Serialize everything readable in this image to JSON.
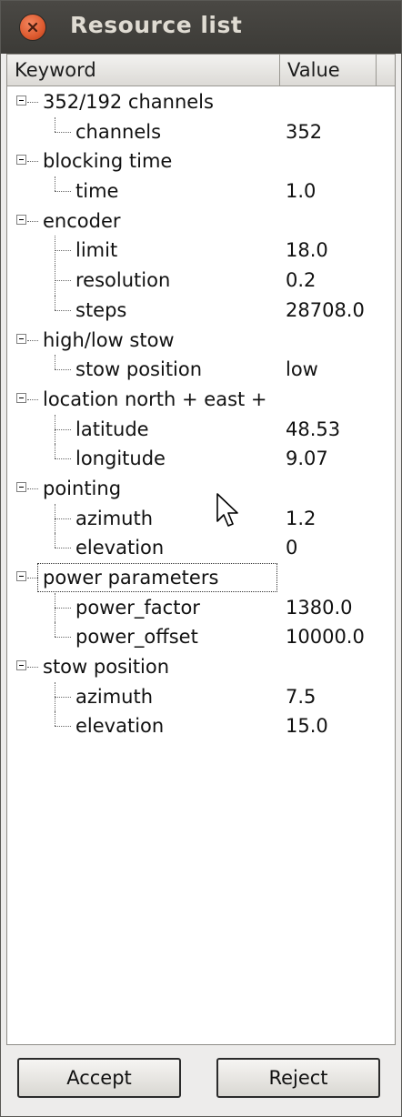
{
  "window": {
    "title": "Resource list"
  },
  "table": {
    "headers": {
      "keyword": "Keyword",
      "value": "Value"
    },
    "groups": [
      {
        "label": "352/192 channels",
        "children": [
          {
            "key": "channels",
            "value": "352"
          }
        ]
      },
      {
        "label": "blocking time",
        "children": [
          {
            "key": "time",
            "value": "1.0"
          }
        ]
      },
      {
        "label": "encoder",
        "children": [
          {
            "key": "limit",
            "value": "18.0"
          },
          {
            "key": "resolution",
            "value": "0.2"
          },
          {
            "key": "steps",
            "value": "28708.0"
          }
        ]
      },
      {
        "label": "high/low stow",
        "children": [
          {
            "key": "stow position",
            "value": "low"
          }
        ]
      },
      {
        "label": "location north + east +",
        "children": [
          {
            "key": "latitude",
            "value": "48.53"
          },
          {
            "key": "longitude",
            "value": "9.07"
          }
        ]
      },
      {
        "label": "pointing",
        "children": [
          {
            "key": "azimuth",
            "value": "1.2"
          },
          {
            "key": "elevation",
            "value": "0"
          }
        ]
      },
      {
        "label": "power parameters",
        "focused": true,
        "children": [
          {
            "key": "power_factor",
            "value": "1380.0"
          },
          {
            "key": "power_offset",
            "value": "10000.0"
          }
        ]
      },
      {
        "label": "stow position",
        "children": [
          {
            "key": "azimuth",
            "value": "7.5"
          },
          {
            "key": "elevation",
            "value": "15.0"
          }
        ]
      }
    ]
  },
  "buttons": {
    "accept": "Accept",
    "reject": "Reject"
  },
  "icons": {
    "close": "close-icon",
    "cursor": "mouse-pointer-icon",
    "expander": "collapse-minus-icon"
  },
  "colors": {
    "titlebar": "#3c3b37",
    "close": "#dd5a2f",
    "background": "#edeceb"
  }
}
